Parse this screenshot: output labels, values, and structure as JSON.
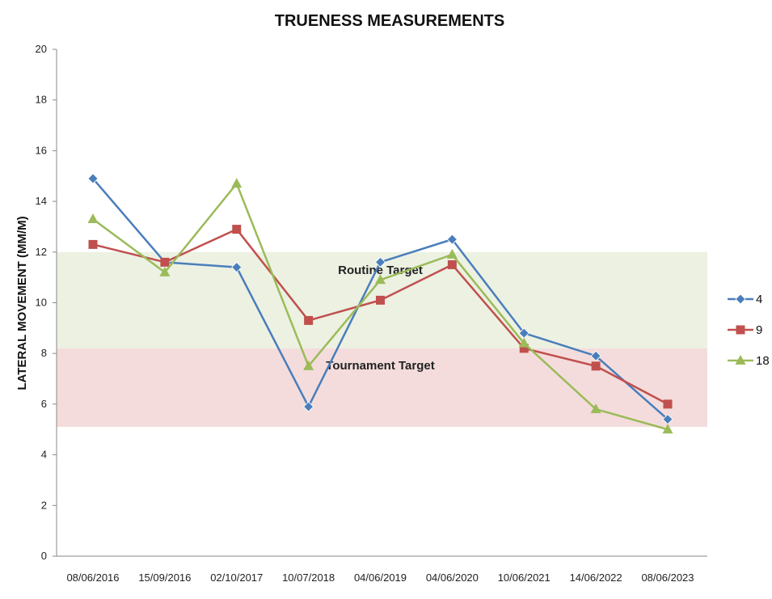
{
  "chart_data": {
    "type": "line",
    "title": "TRUENESS MEASUREMENTS",
    "xlabel": "",
    "ylabel": "LATERAL MOVEMENT (MM/M)",
    "categories": [
      "08/06/2016",
      "15/09/2016",
      "02/10/2017",
      "10/07/2018",
      "04/06/2019",
      "04/06/2020",
      "10/06/2021",
      "14/06/2022",
      "08/06/2023"
    ],
    "ylim": [
      0,
      20
    ],
    "yticks": [
      "0",
      "2",
      "4",
      "6",
      "8",
      "10",
      "12",
      "14",
      "16",
      "18",
      "20"
    ],
    "grid": false,
    "legend_position": "right",
    "bands": [
      {
        "label": "Routine Target",
        "from": 8.2,
        "to": 12.0,
        "color": "#ecf1e2"
      },
      {
        "label": "Tournament Target",
        "from": 5.1,
        "to": 8.2,
        "color": "#f4dcdc"
      }
    ],
    "series": [
      {
        "name": "4",
        "color": "#4a7ebb",
        "marker": "diamond",
        "values": [
          14.9,
          11.6,
          11.4,
          5.9,
          11.6,
          12.5,
          8.8,
          7.9,
          5.4
        ]
      },
      {
        "name": "9",
        "color": "#c0504d",
        "marker": "square",
        "values": [
          12.3,
          11.6,
          12.9,
          9.3,
          10.1,
          11.5,
          8.2,
          7.5,
          6.0
        ]
      },
      {
        "name": "18",
        "color": "#9bbb59",
        "marker": "triangle",
        "values": [
          13.3,
          11.2,
          14.7,
          7.5,
          10.9,
          11.9,
          8.4,
          5.8,
          5.0
        ]
      }
    ]
  }
}
